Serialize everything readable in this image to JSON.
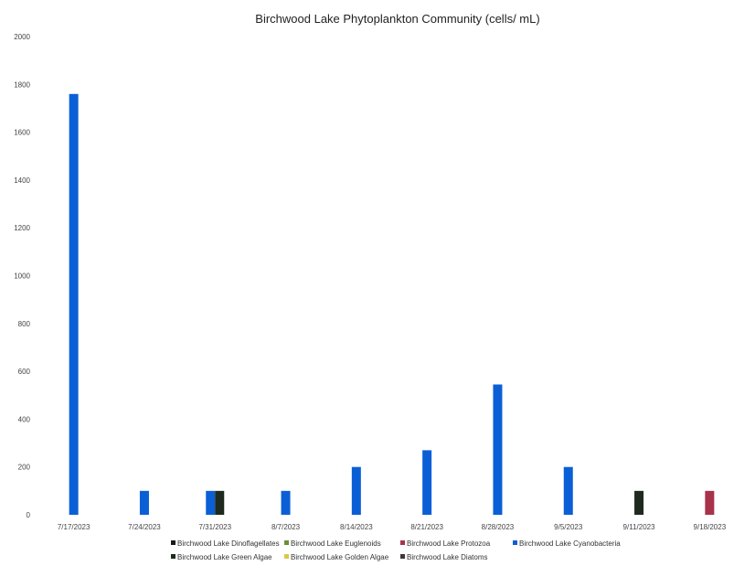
{
  "chart_data": {
    "type": "bar",
    "title": "Birchwood Lake Phytoplankton Community (cells/ mL)",
    "xlabel": "",
    "ylabel": "",
    "ylim": [
      0,
      2000
    ],
    "yticks": [
      0,
      200,
      400,
      600,
      800,
      1000,
      1200,
      1400,
      1600,
      1800,
      2000
    ],
    "grid": false,
    "legend_position": "bottom",
    "categories": [
      "7/17/2023",
      "7/24/2023",
      "7/31/2023",
      "8/7/2023",
      "8/14/2023",
      "8/21/2023",
      "8/28/2023",
      "9/5/2023",
      "9/11/2023",
      "9/18/2023"
    ],
    "series": [
      {
        "name": "Birchwood Lake Dinoflagellates",
        "color": "#1a1a1a",
        "values": [
          0,
          0,
          0,
          0,
          0,
          0,
          0,
          0,
          0,
          0
        ]
      },
      {
        "name": "Birchwood Lake Euglenoids",
        "color": "#6b8f3a",
        "values": [
          0,
          0,
          0,
          0,
          0,
          0,
          0,
          0,
          0,
          0
        ]
      },
      {
        "name": "Birchwood Lake Protozoa",
        "color": "#a8324a",
        "values": [
          0,
          0,
          0,
          0,
          0,
          0,
          0,
          0,
          0,
          100
        ]
      },
      {
        "name": "Birchwood Lake Cyanobacteria",
        "color": "#0b5fd6",
        "values": [
          1760,
          100,
          100,
          100,
          200,
          270,
          545,
          200,
          0,
          0
        ]
      },
      {
        "name": "Birchwood Lake Green Algae",
        "color": "#1e2a1e",
        "values": [
          0,
          0,
          100,
          0,
          0,
          0,
          0,
          0,
          100,
          0
        ]
      },
      {
        "name": "Birchwood Lake Golden Algae",
        "color": "#d8c84a",
        "values": [
          0,
          0,
          0,
          0,
          0,
          0,
          0,
          0,
          0,
          0
        ]
      },
      {
        "name": "Birchwood Lake Diatoms",
        "color": "#3a3a3a",
        "values": [
          0,
          0,
          0,
          0,
          0,
          0,
          0,
          0,
          0,
          0
        ]
      }
    ]
  }
}
